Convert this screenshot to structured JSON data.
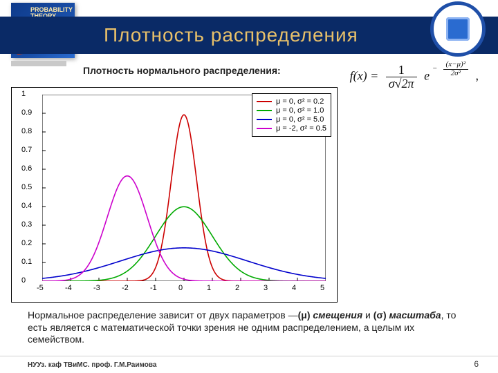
{
  "slide": {
    "title": "Плотность распределения",
    "book_label": "PROBABILITY\nTHEORY",
    "subheading": "Плотность нормального распределения:",
    "body_html": "Нормальное распределение зависит от двух параметров —<b>(μ)</b> <i><b>смещения</b></i> и <b>(σ)</b> <i><b>масштаба</b></i>, то есть является с математической точки зрения не одним распределением, а целым их семейством.",
    "footer": "НУУз. каф ТВиМС. проф. Г.М.Раимова",
    "page": "6"
  },
  "formula": {
    "lhs": "f(x) =",
    "frac1_num": "1",
    "frac1_den": "σ√2π",
    "e_label": "e",
    "exp_minus": "−",
    "exp_num": "(x−μ)²",
    "exp_den": "2σ²",
    "trail": ","
  },
  "chart": {
    "type": "line",
    "xlim": [
      -5,
      5
    ],
    "ylim": [
      0,
      1
    ],
    "xticks": [
      -5,
      -4,
      -3,
      -2,
      -1,
      0,
      1,
      2,
      3,
      4,
      5
    ],
    "yticks": [
      0,
      0.1,
      0.2,
      0.3,
      0.4,
      0.5,
      0.6,
      0.7,
      0.8,
      0.9,
      1
    ],
    "bg": "#ffffff",
    "axis_color": "#000000",
    "tick_fontsize": 11,
    "legend_fontsize": 11,
    "series": [
      {
        "label": "μ =  0, σ² = 0.2",
        "color": "#cc0000",
        "mu": 0,
        "sigma2": 0.2
      },
      {
        "label": "μ =  0, σ² = 1.0",
        "color": "#00aa00",
        "mu": 0,
        "sigma2": 1.0
      },
      {
        "label": "μ =  0, σ² = 5.0",
        "color": "#0000cc",
        "mu": 0,
        "sigma2": 5.0
      },
      {
        "label": "μ = -2, σ² = 0.5",
        "color": "#cc00cc",
        "mu": -2,
        "sigma2": 0.5
      }
    ],
    "line_width": 1.6
  },
  "colors": {
    "title_band": "#0a2a66",
    "title_text": "#e8c06a",
    "emblem_ring": "#1f4fa8"
  }
}
